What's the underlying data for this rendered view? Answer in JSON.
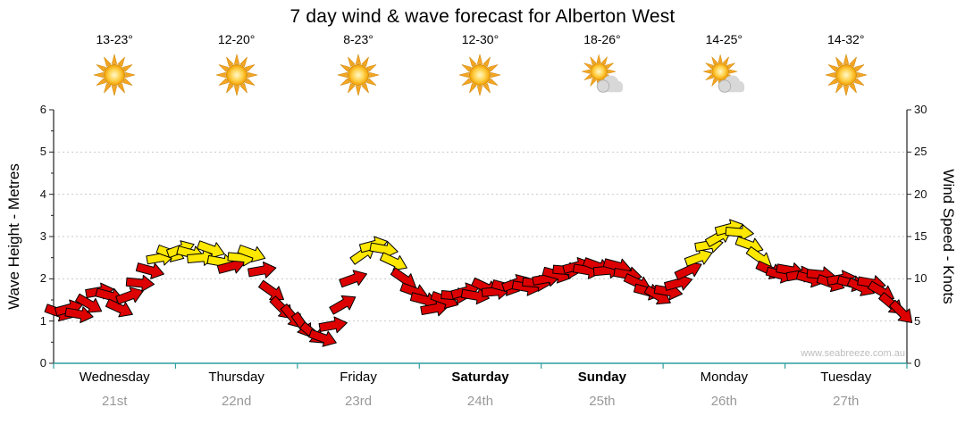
{
  "title": "7 day wind & wave forecast for Alberton West",
  "watermark": "www.seabreeze.com.au",
  "days": [
    {
      "name": "Wednesday",
      "date": "21st",
      "temp": "13-23°",
      "icon": "sun",
      "bold": false
    },
    {
      "name": "Thursday",
      "date": "22nd",
      "temp": "12-20°",
      "icon": "sun",
      "bold": false
    },
    {
      "name": "Friday",
      "date": "23rd",
      "temp": "8-23°",
      "icon": "sun",
      "bold": false
    },
    {
      "name": "Saturday",
      "date": "24th",
      "temp": "12-30°",
      "icon": "sun",
      "bold": true
    },
    {
      "name": "Sunday",
      "date": "25th",
      "temp": "18-26°",
      "icon": "sun-cloud",
      "bold": true
    },
    {
      "name": "Monday",
      "date": "26th",
      "temp": "14-25°",
      "icon": "sun-cloud",
      "bold": false
    },
    {
      "name": "Tuesday",
      "date": "27th",
      "temp": "14-32°",
      "icon": "sun",
      "bold": false
    }
  ],
  "y_left": {
    "label": "Wave Height - Metres",
    "min": 0,
    "max": 6,
    "ticks": [
      0,
      1,
      2,
      3,
      4,
      5,
      6
    ]
  },
  "y_right": {
    "label": "Wind Speed - Knots",
    "min": 0,
    "max": 30,
    "ticks": [
      0,
      5,
      10,
      15,
      20,
      25,
      30
    ]
  },
  "colors": {
    "arrow_red": "#dd0000",
    "arrow_yellow": "#ffe800",
    "arrow_outline": "#000000",
    "gridline": "#c9c9c9",
    "axis": "#222222",
    "bottom_axis": "#2e9e9e",
    "date_text": "#999999",
    "watermark_text": "#bdbdbd"
  },
  "chart_data": {
    "type": "scatter",
    "subtype": "wind-direction-arrows",
    "title": "7 day wind & wave forecast for Alberton West",
    "x_categories": [
      "Wednesday 21st",
      "Thursday 22nd",
      "Friday 23rd",
      "Saturday 24th",
      "Sunday 25th",
      "Monday 26th",
      "Tuesday 27th"
    ],
    "y_left_axis": {
      "label": "Wave Height - Metres",
      "range": [
        0,
        6
      ],
      "ticks": [
        0,
        1,
        2,
        3,
        4,
        5,
        6
      ]
    },
    "y_right_axis": {
      "label": "Wind Speed - Knots",
      "range": [
        0,
        30
      ],
      "ticks": [
        0,
        5,
        10,
        15,
        20,
        25,
        30
      ]
    },
    "grid": "horizontal-dotted",
    "points_per_day": 12,
    "color_rule": {
      "yellow_at_or_above_knots": 12,
      "red_below_knots": 12
    },
    "wind_knots": [
      6,
      6.5,
      5.8,
      7,
      8.5,
      8,
      6.5,
      8,
      9.5,
      11,
      12.5,
      13,
      13.5,
      13,
      12.5,
      13.5,
      12,
      11.5,
      12.5,
      13,
      11,
      8.5,
      6.5,
      5.5,
      4.5,
      3.5,
      3,
      4.5,
      7,
      10,
      13,
      14,
      13.5,
      12,
      10,
      8.5,
      7.5,
      6.5,
      7.5,
      8,
      8.5,
      8,
      9,
      8.5,
      9,
      9.5,
      9,
      9.5,
      10,
      10.5,
      11,
      11.5,
      11,
      11.5,
      11,
      11.5,
      10.5,
      9.5,
      8.5,
      8,
      8.5,
      9.5,
      11,
      12.5,
      14,
      15,
      16,
      15.5,
      14,
      12.5,
      11,
      10.5,
      11,
      10.5,
      10,
      10.5,
      9.5,
      10,
      9.5,
      9,
      9.5,
      8.5,
      7,
      6
    ],
    "wind_angles_deg": [
      20,
      -15,
      10,
      30,
      -10,
      15,
      25,
      -20,
      5,
      15,
      -10,
      20,
      -20,
      15,
      -5,
      20,
      10,
      -15,
      5,
      20,
      -10,
      35,
      45,
      50,
      55,
      40,
      20,
      -10,
      -30,
      -20,
      -35,
      -15,
      10,
      25,
      35,
      20,
      15,
      -10,
      20,
      5,
      -15,
      10,
      25,
      -5,
      15,
      -20,
      10,
      5,
      -10,
      15,
      5,
      -15,
      10,
      20,
      -5,
      15,
      10,
      25,
      15,
      30,
      10,
      -15,
      -25,
      -20,
      -10,
      -30,
      -15,
      5,
      20,
      35,
      25,
      15,
      10,
      -10,
      15,
      5,
      20,
      -10,
      15,
      25,
      10,
      30,
      40,
      45
    ]
  }
}
